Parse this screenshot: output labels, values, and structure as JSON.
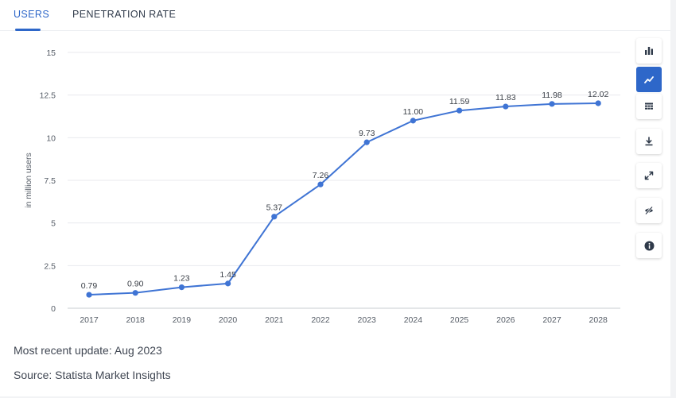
{
  "tabs": [
    {
      "label": "USERS",
      "active": true
    },
    {
      "label": "PENETRATION RATE",
      "active": false
    }
  ],
  "chart_data": {
    "type": "line",
    "x": [
      "2017",
      "2018",
      "2019",
      "2020",
      "2021",
      "2022",
      "2023",
      "2024",
      "2025",
      "2026",
      "2027",
      "2028"
    ],
    "series": [
      {
        "name": "Users",
        "values": [
          0.79,
          0.9,
          1.23,
          1.45,
          5.37,
          7.26,
          9.73,
          11.0,
          11.59,
          11.83,
          11.98,
          12.02
        ]
      }
    ],
    "data_labels": [
      "0.79",
      "0.90",
      "1.23",
      "1.45",
      "5.37",
      "7.26",
      "9.73",
      "11.00",
      "11.59",
      "11.83",
      "11.98",
      "12.02"
    ],
    "ylabel": "in million users",
    "xlabel": "",
    "ylim": [
      0,
      15
    ],
    "yticks": [
      0,
      2.5,
      5,
      7.5,
      10,
      12.5,
      15
    ],
    "ytick_labels": [
      "0",
      "2.5",
      "5",
      "7.5",
      "10",
      "12.5",
      "15"
    ],
    "grid": true,
    "line_color": "#3f74d4"
  },
  "footer": {
    "update": "Most recent update: Aug 2023",
    "source": "Source: Statista Market Insights"
  },
  "toolbar": [
    {
      "icon": "bar-chart-icon",
      "active": false
    },
    {
      "icon": "line-chart-icon",
      "active": true
    },
    {
      "icon": "table-icon",
      "active": false
    },
    {
      "icon": "download-icon",
      "active": false
    },
    {
      "icon": "fullscreen-icon",
      "active": false
    },
    {
      "icon": "hide-icon",
      "active": false
    },
    {
      "icon": "info-icon",
      "active": false
    }
  ],
  "colors": {
    "accent": "#2e67c9",
    "text": "#404753"
  }
}
